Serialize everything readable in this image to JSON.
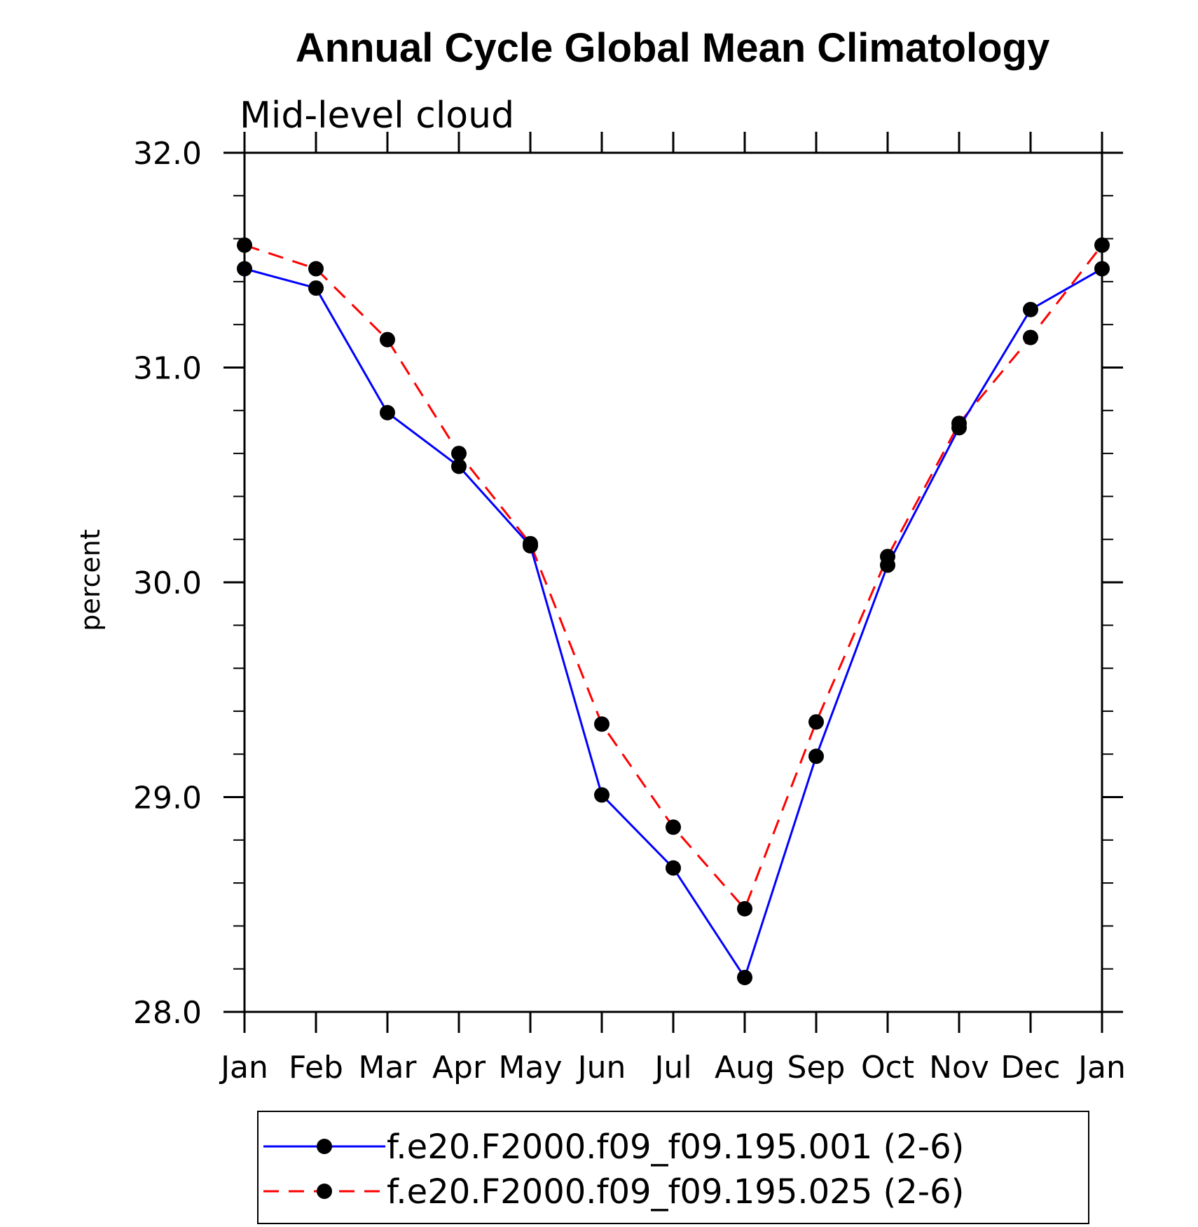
{
  "chart_data": {
    "type": "line",
    "title": "Annual Cycle Global Mean Climatology",
    "subtitle": "Mid-level cloud",
    "xlabel": "",
    "ylabel": "percent",
    "categories": [
      "Jan",
      "Feb",
      "Mar",
      "Apr",
      "May",
      "Jun",
      "Jul",
      "Aug",
      "Sep",
      "Oct",
      "Nov",
      "Dec",
      "Jan"
    ],
    "ylim": [
      28.0,
      32.0
    ],
    "yticks": [
      "28.0",
      "29.0",
      "30.0",
      "31.0",
      "32.0"
    ],
    "series": [
      {
        "name": "f.e20.F2000.f09_f09.195.001 (2-6)",
        "color": "#0000ff",
        "style": "solid",
        "marker": "filled-circle",
        "values": [
          31.46,
          31.37,
          30.79,
          30.54,
          30.17,
          29.01,
          28.67,
          28.16,
          29.19,
          30.08,
          30.72,
          31.27,
          31.46
        ]
      },
      {
        "name": "f.e20.F2000.f09_f09.195.025 (2-6)",
        "color": "#ff0000",
        "style": "dashed",
        "marker": "filled-circle",
        "values": [
          31.57,
          31.46,
          31.13,
          30.6,
          30.18,
          29.34,
          28.86,
          28.48,
          29.35,
          30.12,
          30.74,
          31.14,
          31.57
        ]
      }
    ],
    "grid": false,
    "legend_position": "bottom"
  }
}
